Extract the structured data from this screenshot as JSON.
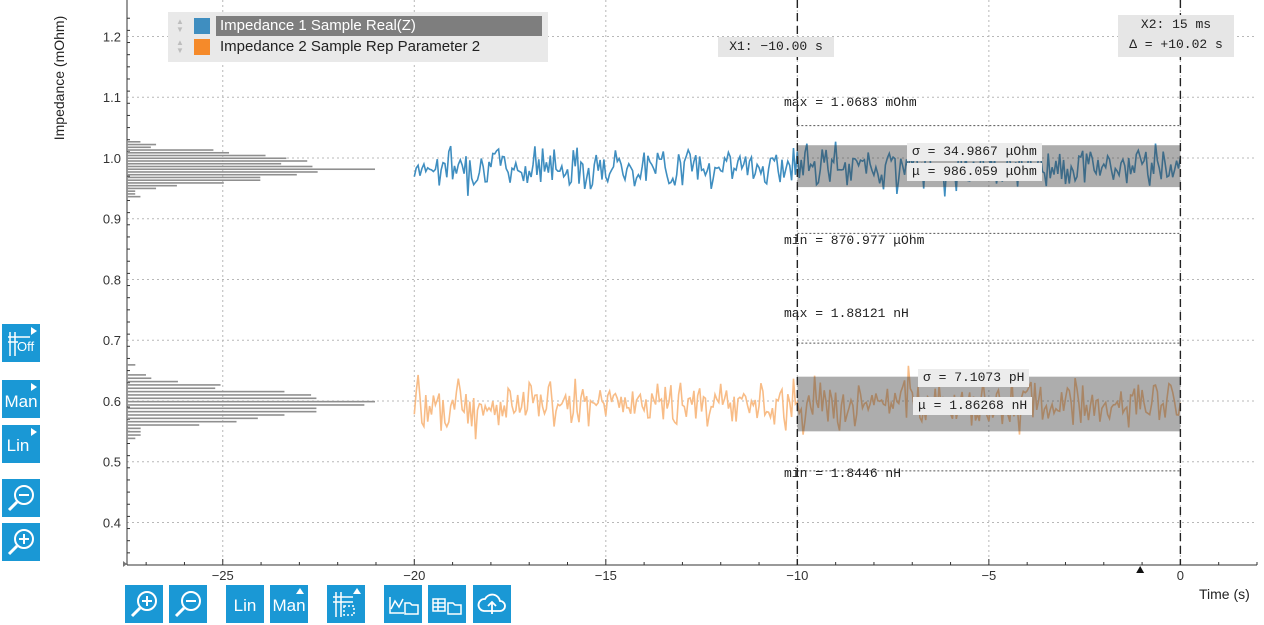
{
  "chart_data": {
    "type": "line",
    "xlabel": "Time (s)",
    "ylabel": "Impedance (mOhm)",
    "xlim": [
      -27.5,
      2
    ],
    "ylim": [
      0.33,
      1.26
    ],
    "xticks": [
      -25,
      -20,
      -15,
      -10,
      -5,
      0
    ],
    "xtick_labels": [
      "−25",
      "−20",
      "−15",
      "−10",
      "−5",
      "0"
    ],
    "yticks": [
      0.4,
      0.5,
      0.6,
      0.7,
      0.8,
      0.9,
      1.0,
      1.1,
      1.2
    ],
    "ytick_labels": [
      "0.4",
      "0.5",
      "0.6",
      "0.7",
      "0.8",
      "0.9",
      "1.0",
      "1.1",
      "1.2"
    ],
    "grid": true,
    "legend_position": "top-left",
    "series": [
      {
        "name": "Impedance 1 Sample Real(Z)",
        "color": "#3f8ec0",
        "x_range": [
          -20,
          0
        ],
        "mean": 0.986,
        "min": 0.871,
        "max": 1.068
      },
      {
        "name": "Impedance 2 Sample Rep Parameter 2",
        "color": "#f8bc86",
        "x_range": [
          -20,
          0
        ],
        "mean": 0.595,
        "min": 0.47,
        "max": 0.71
      }
    ],
    "cursors": {
      "x1_label": "X1: −10.00 s",
      "x1_value": -10,
      "x2_label": "X2: 15 ms",
      "x2_value": 0,
      "delta_label": "Δ = +10.02 s"
    },
    "stats": [
      {
        "max": "max = 1.0683 mOhm",
        "min": "min = 870.977 μOhm",
        "sigma": "σ = 34.9867 μOhm",
        "mu": "μ = 986.059 μOhm",
        "max_value": 1.068,
        "min_value": 0.871,
        "band": [
          0.952,
          1.021
        ]
      },
      {
        "max": "max = 1.88121 nH",
        "min": "min = 1.8446 nH",
        "sigma": "σ = 7.1073 pH",
        "mu": "μ = 1.86268 nH",
        "max_value": 0.71,
        "min_value": 0.48,
        "band": [
          0.55,
          0.64
        ]
      }
    ]
  },
  "toolbar_left": {
    "grid_label": "Off",
    "scale_mode_label": "Man",
    "scale_type_label": "Lin"
  },
  "toolbar_bottom": {
    "scale_type_label": "Lin",
    "scale_mode_label": "Man"
  },
  "colors": {
    "accent": "#1a98d5",
    "series1": "#3f8ec0",
    "series2": "#f8bc86"
  }
}
